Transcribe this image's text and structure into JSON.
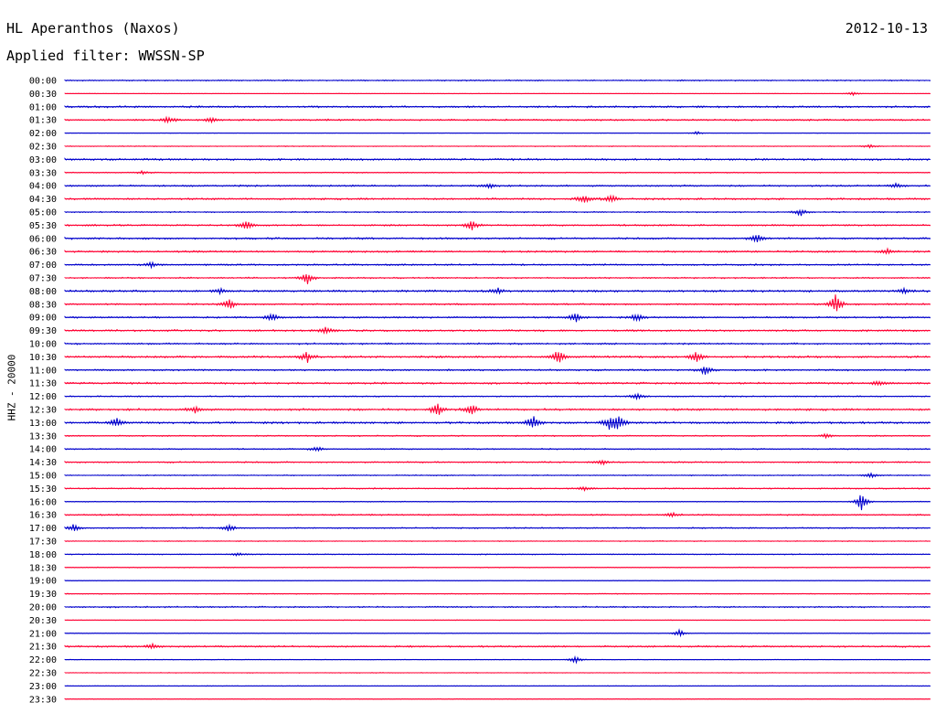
{
  "header": {
    "station_title": "HL Aperanthos (Naxos)",
    "date": "2012-10-13",
    "filter_text": "Applied filter: WWSSN-SP"
  },
  "chart_data": {
    "type": "seismogram",
    "title": "HL Aperanthos (Naxos)",
    "date": "2012-10-13",
    "filter": "WWSSN-SP",
    "ylabel": "HHZ - 20000",
    "xlabel": "",
    "grid": false,
    "rows": [
      {
        "time": "00:00",
        "color": "#0000cc",
        "noise": 0.6,
        "events": []
      },
      {
        "time": "00:30",
        "color": "#ff0033",
        "noise": 0.2,
        "events": [
          {
            "x": 0.91,
            "amp": 2
          }
        ]
      },
      {
        "time": "01:00",
        "color": "#0000cc",
        "noise": 0.9,
        "events": []
      },
      {
        "time": "01:30",
        "color": "#ff0033",
        "noise": 0.8,
        "events": [
          {
            "x": 0.12,
            "amp": 4
          },
          {
            "x": 0.17,
            "amp": 3
          }
        ]
      },
      {
        "time": "02:00",
        "color": "#0000cc",
        "noise": 0.2,
        "events": [
          {
            "x": 0.73,
            "amp": 2
          }
        ]
      },
      {
        "time": "02:30",
        "color": "#ff0033",
        "noise": 0.4,
        "events": [
          {
            "x": 0.93,
            "amp": 2
          }
        ]
      },
      {
        "time": "03:00",
        "color": "#0000cc",
        "noise": 0.9,
        "events": []
      },
      {
        "time": "03:30",
        "color": "#ff0033",
        "noise": 0.5,
        "events": [
          {
            "x": 0.09,
            "amp": 2
          }
        ]
      },
      {
        "time": "04:00",
        "color": "#0000cc",
        "noise": 0.8,
        "events": [
          {
            "x": 0.49,
            "amp": 3
          },
          {
            "x": 0.96,
            "amp": 3
          }
        ]
      },
      {
        "time": "04:30",
        "color": "#ff0033",
        "noise": 0.9,
        "events": [
          {
            "x": 0.6,
            "amp": 6
          },
          {
            "x": 0.63,
            "amp": 5
          }
        ]
      },
      {
        "time": "05:00",
        "color": "#0000cc",
        "noise": 0.6,
        "events": [
          {
            "x": 0.85,
            "amp": 4
          }
        ]
      },
      {
        "time": "05:30",
        "color": "#ff0033",
        "noise": 0.8,
        "events": [
          {
            "x": 0.21,
            "amp": 6
          },
          {
            "x": 0.47,
            "amp": 6
          }
        ]
      },
      {
        "time": "06:00",
        "color": "#0000cc",
        "noise": 0.9,
        "events": [
          {
            "x": 0.8,
            "amp": 5
          }
        ]
      },
      {
        "time": "06:30",
        "color": "#ff0033",
        "noise": 0.9,
        "events": [
          {
            "x": 0.95,
            "amp": 3
          }
        ]
      },
      {
        "time": "07:00",
        "color": "#0000cc",
        "noise": 0.8,
        "events": [
          {
            "x": 0.1,
            "amp": 3
          }
        ]
      },
      {
        "time": "07:30",
        "color": "#ff0033",
        "noise": 0.7,
        "events": [
          {
            "x": 0.28,
            "amp": 7
          }
        ]
      },
      {
        "time": "08:00",
        "color": "#0000cc",
        "noise": 1.0,
        "events": [
          {
            "x": 0.18,
            "amp": 3
          },
          {
            "x": 0.5,
            "amp": 3
          },
          {
            "x": 0.97,
            "amp": 3
          }
        ]
      },
      {
        "time": "08:30",
        "color": "#ff0033",
        "noise": 0.8,
        "events": [
          {
            "x": 0.19,
            "amp": 6
          },
          {
            "x": 0.89,
            "amp": 12
          }
        ]
      },
      {
        "time": "09:00",
        "color": "#0000cc",
        "noise": 0.8,
        "events": [
          {
            "x": 0.24,
            "amp": 5
          },
          {
            "x": 0.59,
            "amp": 7
          },
          {
            "x": 0.66,
            "amp": 5
          }
        ]
      },
      {
        "time": "09:30",
        "color": "#ff0033",
        "noise": 0.9,
        "events": [
          {
            "x": 0.3,
            "amp": 4
          }
        ]
      },
      {
        "time": "10:00",
        "color": "#0000cc",
        "noise": 0.8,
        "events": []
      },
      {
        "time": "10:30",
        "color": "#ff0033",
        "noise": 1.0,
        "events": [
          {
            "x": 0.28,
            "amp": 6
          },
          {
            "x": 0.57,
            "amp": 8
          },
          {
            "x": 0.73,
            "amp": 7
          }
        ]
      },
      {
        "time": "11:00",
        "color": "#0000cc",
        "noise": 0.8,
        "events": [
          {
            "x": 0.74,
            "amp": 6
          }
        ]
      },
      {
        "time": "11:30",
        "color": "#ff0033",
        "noise": 0.9,
        "events": [
          {
            "x": 0.94,
            "amp": 3
          }
        ]
      },
      {
        "time": "12:00",
        "color": "#0000cc",
        "noise": 0.6,
        "events": [
          {
            "x": 0.66,
            "amp": 4
          }
        ]
      },
      {
        "time": "12:30",
        "color": "#ff0033",
        "noise": 1.0,
        "events": [
          {
            "x": 0.15,
            "amp": 4
          },
          {
            "x": 0.43,
            "amp": 8
          },
          {
            "x": 0.47,
            "amp": 6
          }
        ]
      },
      {
        "time": "13:00",
        "color": "#0000cc",
        "noise": 1.0,
        "events": [
          {
            "x": 0.06,
            "amp": 5
          },
          {
            "x": 0.54,
            "amp": 9
          },
          {
            "x": 0.63,
            "amp": 8
          },
          {
            "x": 0.64,
            "amp": 8
          }
        ]
      },
      {
        "time": "13:30",
        "color": "#ff0033",
        "noise": 0.6,
        "events": [
          {
            "x": 0.88,
            "amp": 3
          }
        ]
      },
      {
        "time": "14:00",
        "color": "#0000cc",
        "noise": 0.6,
        "events": [
          {
            "x": 0.29,
            "amp": 3
          }
        ]
      },
      {
        "time": "14:30",
        "color": "#ff0033",
        "noise": 0.7,
        "events": [
          {
            "x": 0.62,
            "amp": 3
          }
        ]
      },
      {
        "time": "15:00",
        "color": "#0000cc",
        "noise": 0.5,
        "events": [
          {
            "x": 0.93,
            "amp": 3
          }
        ]
      },
      {
        "time": "15:30",
        "color": "#ff0033",
        "noise": 0.6,
        "events": [
          {
            "x": 0.6,
            "amp": 3
          }
        ]
      },
      {
        "time": "16:00",
        "color": "#0000cc",
        "noise": 0.4,
        "events": [
          {
            "x": 0.92,
            "amp": 10
          }
        ]
      },
      {
        "time": "16:30",
        "color": "#ff0033",
        "noise": 0.7,
        "events": [
          {
            "x": 0.7,
            "amp": 3
          }
        ]
      },
      {
        "time": "17:00",
        "color": "#0000cc",
        "noise": 0.6,
        "events": [
          {
            "x": 0.01,
            "amp": 4
          },
          {
            "x": 0.19,
            "amp": 4
          }
        ]
      },
      {
        "time": "17:30",
        "color": "#ff0033",
        "noise": 0.4,
        "events": []
      },
      {
        "time": "18:00",
        "color": "#0000cc",
        "noise": 0.5,
        "events": [
          {
            "x": 0.2,
            "amp": 2
          }
        ]
      },
      {
        "time": "18:30",
        "color": "#ff0033",
        "noise": 0.4,
        "events": []
      },
      {
        "time": "19:00",
        "color": "#0000cc",
        "noise": 0.3,
        "events": []
      },
      {
        "time": "19:30",
        "color": "#ff0033",
        "noise": 0.4,
        "events": []
      },
      {
        "time": "20:00",
        "color": "#0000cc",
        "noise": 0.7,
        "events": []
      },
      {
        "time": "20:30",
        "color": "#ff0033",
        "noise": 0.3,
        "events": []
      },
      {
        "time": "21:00",
        "color": "#0000cc",
        "noise": 0.3,
        "events": [
          {
            "x": 0.71,
            "amp": 4
          }
        ]
      },
      {
        "time": "21:30",
        "color": "#ff0033",
        "noise": 0.8,
        "events": [
          {
            "x": 0.1,
            "amp": 3
          }
        ]
      },
      {
        "time": "22:00",
        "color": "#0000cc",
        "noise": 0.3,
        "events": [
          {
            "x": 0.59,
            "amp": 4
          }
        ]
      },
      {
        "time": "22:30",
        "color": "#ff0033",
        "noise": 0.3,
        "events": []
      },
      {
        "time": "23:00",
        "color": "#0000cc",
        "noise": 0.3,
        "events": []
      },
      {
        "time": "23:30",
        "color": "#ff0033",
        "noise": 0.3,
        "events": []
      }
    ]
  }
}
